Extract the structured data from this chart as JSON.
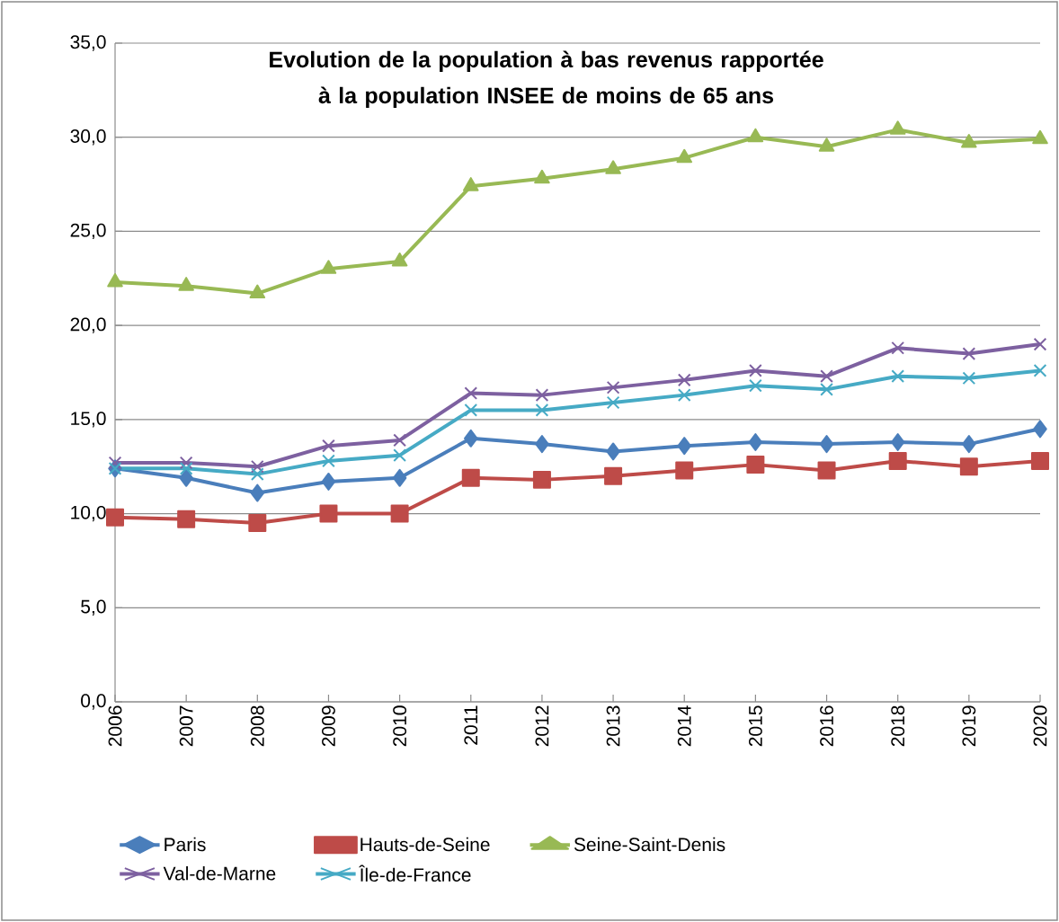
{
  "chart_data": {
    "type": "line",
    "title": "Evolution de la population à bas revenus rapportée à la population INSEE de moins de 65 ans",
    "categories": [
      "2006",
      "2007",
      "2008",
      "2009",
      "2010",
      "2011",
      "2012",
      "2013",
      "2014",
      "2015",
      "2016",
      "2018",
      "2019",
      "2020"
    ],
    "ylim": [
      0,
      35
    ],
    "yticks": [
      {
        "value": 0,
        "label": "0,0"
      },
      {
        "value": 5,
        "label": "5,0"
      },
      {
        "value": 10,
        "label": "10,0"
      },
      {
        "value": 15,
        "label": "15,0"
      },
      {
        "value": 20,
        "label": "20,0"
      },
      {
        "value": 25,
        "label": "25,0"
      },
      {
        "value": 30,
        "label": "30,0"
      },
      {
        "value": 35,
        "label": "35,0"
      }
    ],
    "grid": "y",
    "legend": "bottom",
    "series": [
      {
        "name": "Paris",
        "color": "#4a7ebb",
        "marker": "diamond",
        "values": [
          12.4,
          11.9,
          11.1,
          11.7,
          11.9,
          14.0,
          13.7,
          13.3,
          13.6,
          13.8,
          13.7,
          13.8,
          13.7,
          14.5
        ]
      },
      {
        "name": "Hauts-de-Seine",
        "color": "#be4b48",
        "marker": "square",
        "values": [
          9.8,
          9.7,
          9.5,
          10.0,
          10.0,
          11.9,
          11.8,
          12.0,
          12.3,
          12.6,
          12.3,
          12.8,
          12.5,
          12.8
        ]
      },
      {
        "name": "Seine-Saint-Denis",
        "color": "#98b954",
        "marker": "triangle",
        "values": [
          22.3,
          22.1,
          21.7,
          23.0,
          23.4,
          27.4,
          27.8,
          28.3,
          28.9,
          30.0,
          29.5,
          30.4,
          29.7,
          29.9
        ]
      },
      {
        "name": "Val-de-Marne",
        "color": "#7d60a0",
        "marker": "cross",
        "values": [
          12.7,
          12.7,
          12.5,
          13.6,
          13.9,
          16.4,
          16.3,
          16.7,
          17.1,
          17.6,
          17.3,
          18.8,
          18.5,
          19.0
        ]
      },
      {
        "name": "Île-de-France",
        "color": "#46aac5",
        "marker": "cross",
        "values": [
          12.4,
          12.4,
          12.1,
          12.8,
          13.1,
          15.5,
          15.5,
          15.9,
          16.3,
          16.8,
          16.6,
          17.3,
          17.2,
          17.6
        ]
      }
    ]
  }
}
